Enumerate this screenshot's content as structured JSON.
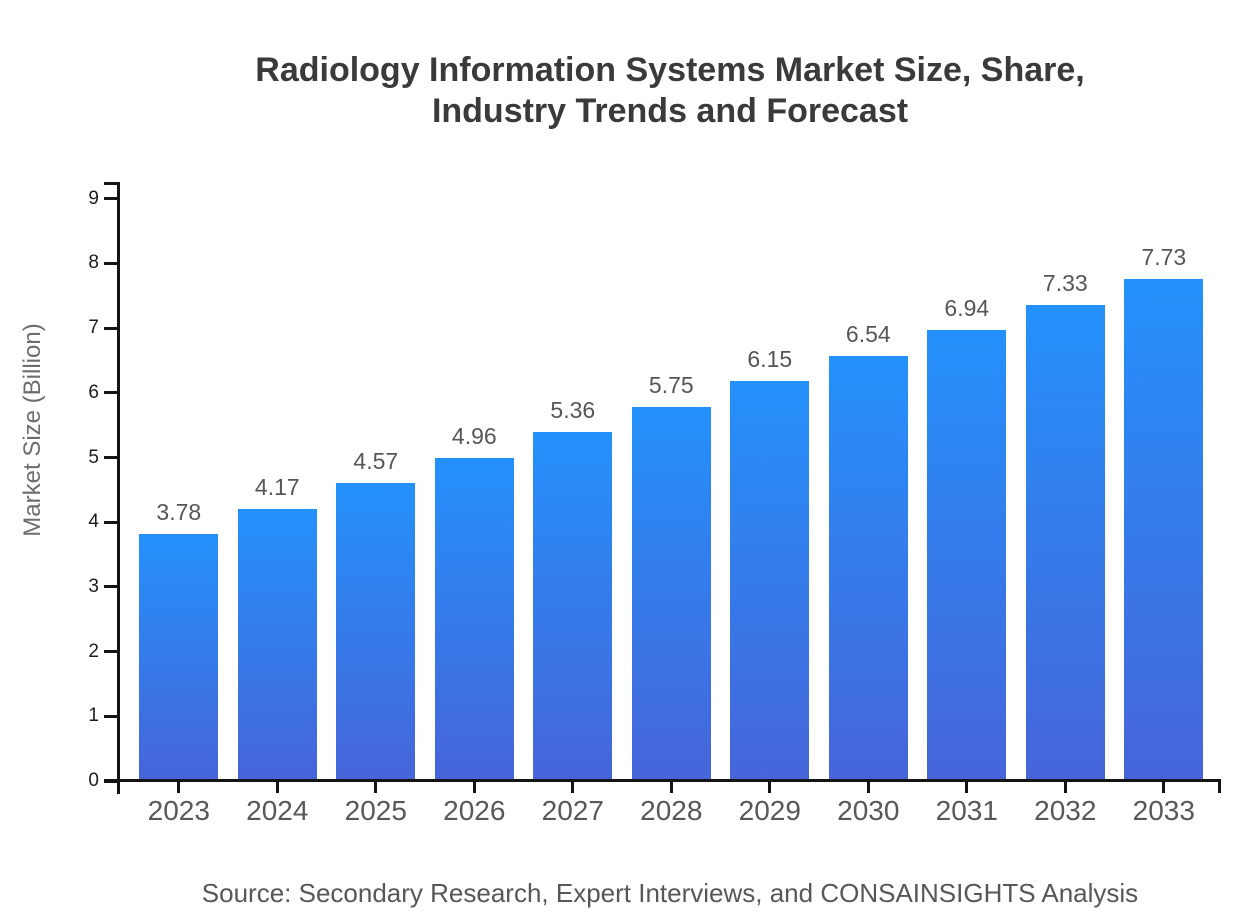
{
  "chart_data": {
    "type": "bar",
    "title": "Radiology Information Systems Market Size, Share, Industry Trends and Forecast",
    "title_lines": [
      "Radiology Information Systems Market Size, Share,",
      "Industry Trends and Forecast"
    ],
    "xlabel": "",
    "ylabel": "Market Size (Billion)",
    "categories": [
      "2023",
      "2024",
      "2025",
      "2026",
      "2027",
      "2028",
      "2029",
      "2030",
      "2031",
      "2032",
      "2033"
    ],
    "values": [
      3.78,
      4.17,
      4.57,
      4.96,
      5.36,
      5.75,
      6.15,
      6.54,
      6.94,
      7.33,
      7.73
    ],
    "value_labels": [
      "3.78",
      "4.17",
      "4.57",
      "4.96",
      "5.36",
      "5.75",
      "6.15",
      "6.54",
      "6.94",
      "7.33",
      "7.73"
    ],
    "ylim": [
      0,
      9
    ],
    "yticks": [
      0,
      1,
      2,
      3,
      4,
      5,
      6,
      7,
      8,
      9
    ],
    "grid": "off",
    "legend": "none",
    "source": "Source: Secondary Research, Expert Interviews, and CONSAINSIGHTS Analysis",
    "colors": {
      "background": "#ffffff",
      "bar_gradient_top": "#2491fa",
      "bar_gradient_bottom": "#4665da",
      "axis": "#141414",
      "y_tick_label": "#1c1c1c",
      "x_tick_label": "#58585a",
      "value_label": "#565656",
      "title": "#3a3a3a",
      "y_axis_title": "#6d6d6d",
      "source_text": "#575757"
    }
  }
}
